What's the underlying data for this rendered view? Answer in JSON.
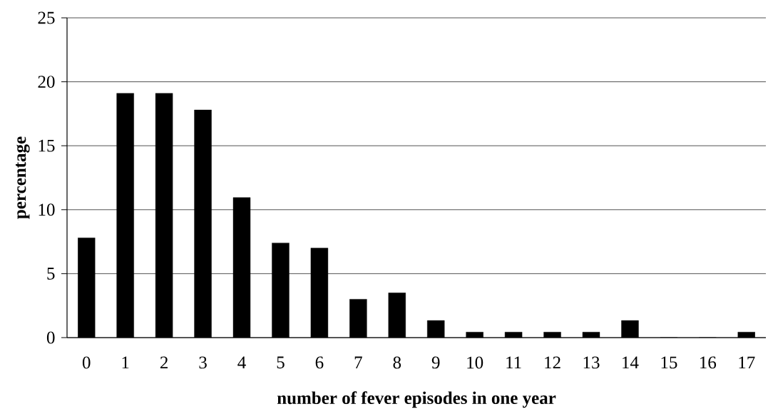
{
  "chart_data": {
    "type": "bar",
    "xlabel": "number of fever episodes in one year",
    "ylabel": "percentage",
    "categories": [
      "0",
      "1",
      "2",
      "3",
      "4",
      "5",
      "6",
      "7",
      "8",
      "9",
      "10",
      "11",
      "12",
      "13",
      "14",
      "15",
      "16",
      "17"
    ],
    "values": [
      7.8,
      19.1,
      19.1,
      17.8,
      10.95,
      7.4,
      7.0,
      3.0,
      3.5,
      1.34,
      0.43,
      0.43,
      0.43,
      0.43,
      1.34,
      0,
      0,
      0.43
    ],
    "color": "#000000",
    "ylim": [
      0,
      25
    ],
    "yticks": [
      0,
      5,
      10,
      15,
      20,
      25
    ],
    "grid": "y"
  }
}
